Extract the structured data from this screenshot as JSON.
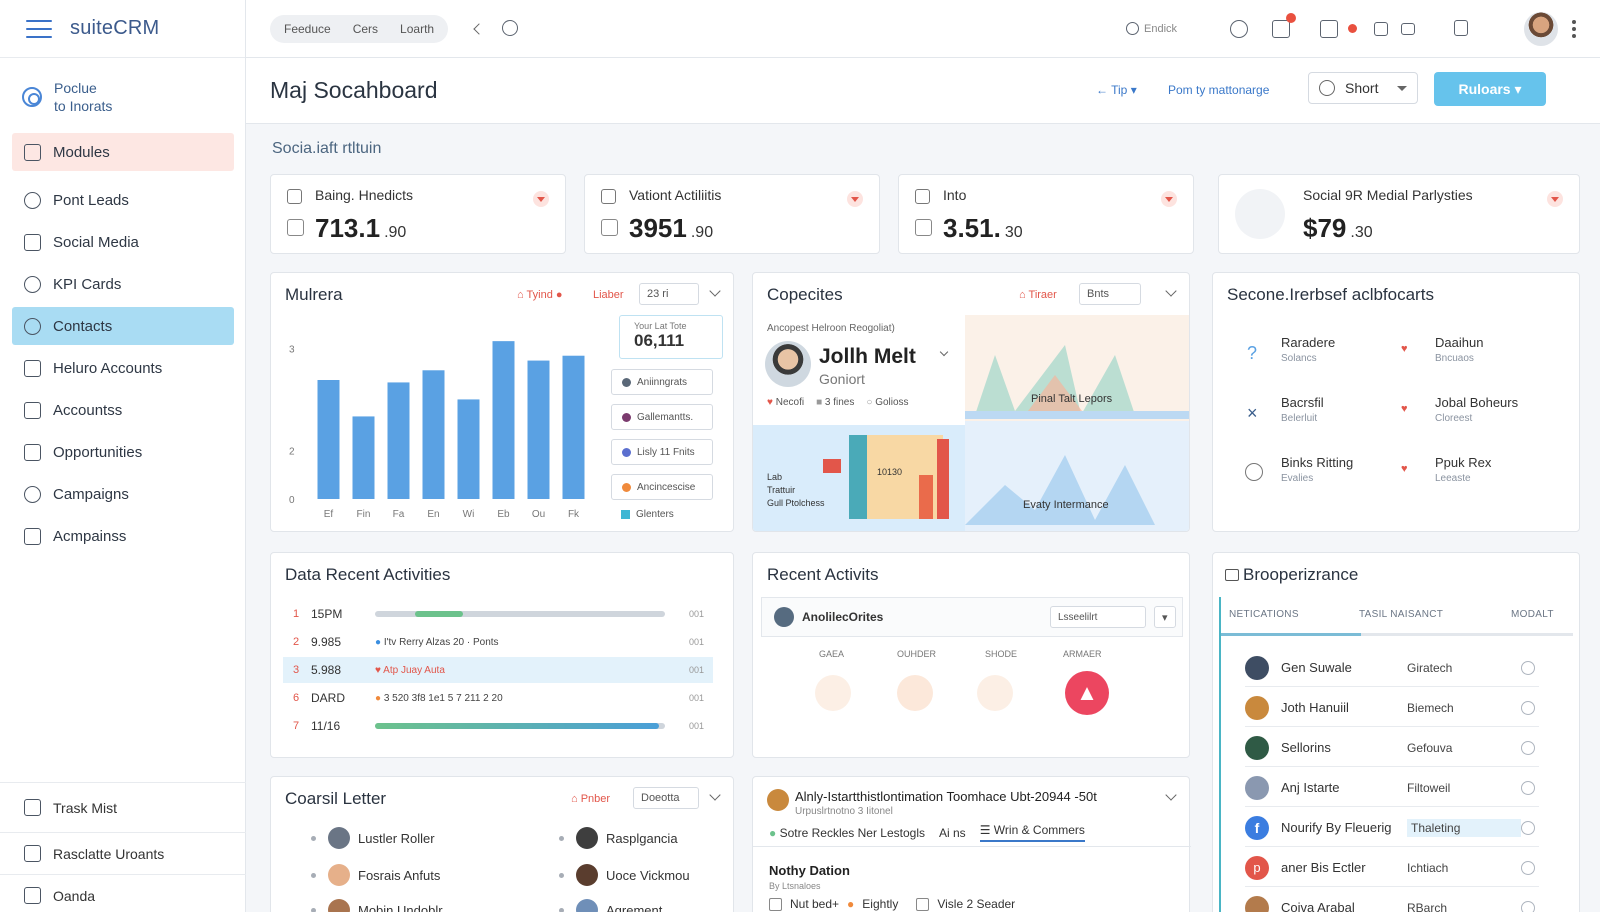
{
  "app": {
    "name": "suiteCRM",
    "profile_line1": "Poclue",
    "profile_line2": "to Inorats"
  },
  "sidebar": {
    "items": [
      {
        "label": "Modules",
        "icon": "home-icon"
      },
      {
        "label": "Pont Leads",
        "icon": "leads-icon"
      },
      {
        "label": "Social Media",
        "icon": "social-icon"
      },
      {
        "label": "KPI Cards",
        "icon": "user-icon"
      },
      {
        "label": "Contacts",
        "icon": "contacts-icon"
      },
      {
        "label": "Heluro Accounts",
        "icon": "grid-icon"
      },
      {
        "label": "Accountss",
        "icon": "list-icon"
      },
      {
        "label": "Opportunities",
        "icon": "megaphone-icon"
      },
      {
        "label": "Campaigns",
        "icon": "campaign-icon"
      },
      {
        "label": "Acmpainss",
        "icon": "folder-icon"
      }
    ],
    "bottom": [
      "Trask Mist",
      "Rasclatte Uroants",
      "Oanda"
    ]
  },
  "topbar": {
    "pill_items": [
      "Feeduce",
      "Cers",
      "Loarth"
    ],
    "user_text": "Endick"
  },
  "header": {
    "title": "Maj Socahboard",
    "link1": "Tip",
    "link2": "Pom ty mattonarge",
    "select_value": "Short",
    "primary_button": "Ruloars"
  },
  "section_label": "Socia.iaft rtltuin",
  "kpis": [
    {
      "label": "Baing. Hnedicts",
      "value": "713.1",
      "decimal": ".90"
    },
    {
      "label": "Vationt Actiliitis",
      "value": "3951",
      "decimal": ".90"
    },
    {
      "label": "Into",
      "value": "3.51.",
      "decimal": "30"
    },
    {
      "label": "Social 9R Medial Parlysties",
      "value": "$79",
      "decimal": ".30"
    }
  ],
  "chart_card": {
    "title": "Mulrera",
    "filter_label": "Tyind",
    "filter2_label": "Liaber",
    "range_value": "23 ri",
    "summary_label": "Your Lat Tote",
    "summary_value": "06,111",
    "legend": [
      {
        "label": "Aniinngrats",
        "color": "#5a6878"
      },
      {
        "label": "Gallemantts.",
        "color": "#7b3b6e"
      },
      {
        "label": "Lisly 11 Fnits",
        "color": "#5b6fcf"
      },
      {
        "label": "Ancincescise",
        "color": "#f08a3c"
      },
      {
        "label": "Glenters",
        "color": "#3fb6d4"
      }
    ]
  },
  "chart_data": {
    "type": "bar",
    "categories": [
      "Ef",
      "Fin",
      "Fa",
      "En",
      "Wi",
      "Eb",
      "Ou",
      "Fk"
    ],
    "values": [
      4.9,
      3.4,
      4.8,
      5.3,
      4.1,
      6.5,
      5.7,
      5.9
    ],
    "yticks": [
      "0",
      "2",
      "",
      "3"
    ],
    "ylim": [
      0,
      7
    ],
    "color": "#5aa1e3",
    "grid": false,
    "legend": "right"
  },
  "copecites": {
    "title": "Copecites",
    "filter_label": "Tiraer",
    "box_label": "Bnts",
    "subtitle": "Ancopest Helroon Reogoliat)",
    "contact_name": "Jollh Melt",
    "contact_role": "Goniort",
    "tags": [
      "Necofi",
      "3 fines",
      "Golioss"
    ],
    "panel1": "Pinal Talt Lepors",
    "panel2": "Evaty Intermance",
    "panel3_l1": "Lab",
    "panel3_l2": "Trattuir",
    "panel3_l3": "Gull Ptolchess",
    "panel3_val": "10130"
  },
  "secondary": {
    "title": "Secone.Irerbsef aclbfocarts",
    "items": [
      {
        "name": "Raradere",
        "sub": "Solancs"
      },
      {
        "name": "Daaihun",
        "sub": "Bncuaos"
      },
      {
        "name": "Bacrsfil",
        "sub": "Belerluit"
      },
      {
        "name": "Jobal Boheurs",
        "sub": "Cloreest"
      },
      {
        "name": "Binks Ritting",
        "sub": "Evalies"
      },
      {
        "name": "Ppuk Rex",
        "sub": "Leeaste"
      }
    ]
  },
  "activities": {
    "title": "Data Recent Activities",
    "rows": [
      {
        "num": "1",
        "time": "15PM",
        "detail": "",
        "fill": 0.15,
        "color": "#6cc28c"
      },
      {
        "num": "2",
        "time": "9.985",
        "detail": "I'tv Rerry Alzas 20 · Ponts",
        "fill": 0,
        "color": "#3a8ee0"
      },
      {
        "num": "3",
        "time": "5.988",
        "detail": "Atp Juay   Auta",
        "fill": 0,
        "color": "#e2564a"
      },
      {
        "num": "6",
        "time": "DARD",
        "detail": "3  520  3f8  1e1  5  7 211  2 20",
        "fill": 0,
        "color": "#f08a3c"
      },
      {
        "num": "7",
        "time": "11/16",
        "detail": "",
        "fill": 0.98,
        "color": "#4a9fd8"
      }
    ],
    "end_label": "001"
  },
  "recent": {
    "title": "Recent Activits",
    "row_label": "AnolilecOrites",
    "select_value": "Lsseelilrt",
    "cols": [
      "GAEA",
      "OUHDER",
      "SHODE",
      "ARMAER"
    ]
  },
  "ranking": {
    "title": "Brooperizrance",
    "tabs": [
      "NETICATIONS",
      "TASIL NAISANCT",
      "MODALT"
    ],
    "rows": [
      {
        "name": "Gen Suwale",
        "tag": "Giratech",
        "color": "#3e4d63"
      },
      {
        "name": "Joth Hanuiil",
        "tag": "Biemech",
        "color": "#c9893d"
      },
      {
        "name": "Sellorins",
        "tag": "Gefouva",
        "color": "#2f5a45"
      },
      {
        "name": "Anj Istarte",
        "tag": "Filtoweil",
        "color": "#8a98b0"
      },
      {
        "name": "Nourify By Fleuerig",
        "tag": "Thaleting",
        "color": "#3b7de0"
      },
      {
        "name": "aner Bis Ectler",
        "tag": "Ichtiach",
        "color": "#e2564a"
      },
      {
        "name": "Coiva Arabal",
        "tag": "RBarch",
        "color": "#b37b4c"
      }
    ]
  },
  "coarsil": {
    "title": "Coarsil Letter",
    "filter_label": "Pnber",
    "box_label": "Doeotta",
    "left": [
      "Lustler Roller",
      "Fosrais Anfuts",
      "Mobin Undoblr"
    ],
    "right": [
      "Rasplgancia",
      "Uoce Vickmou",
      "Agrement"
    ]
  },
  "info": {
    "title": "Alnly-Istartthistlontimation Toomhace Ubt-20944 -50t",
    "subtitle": "Urpuslrtnotno 3  Iitonel",
    "tab1": "Sotre Reckles Ner Lestogls",
    "tab2": "Ai ns",
    "tab3": "Wrin & Commers",
    "section": "Nothy Dation",
    "section_sub": "By Ltsnaloes",
    "check1": "Nut bed+",
    "check2": "Eightly",
    "check3": "Visle 2 Seader"
  }
}
